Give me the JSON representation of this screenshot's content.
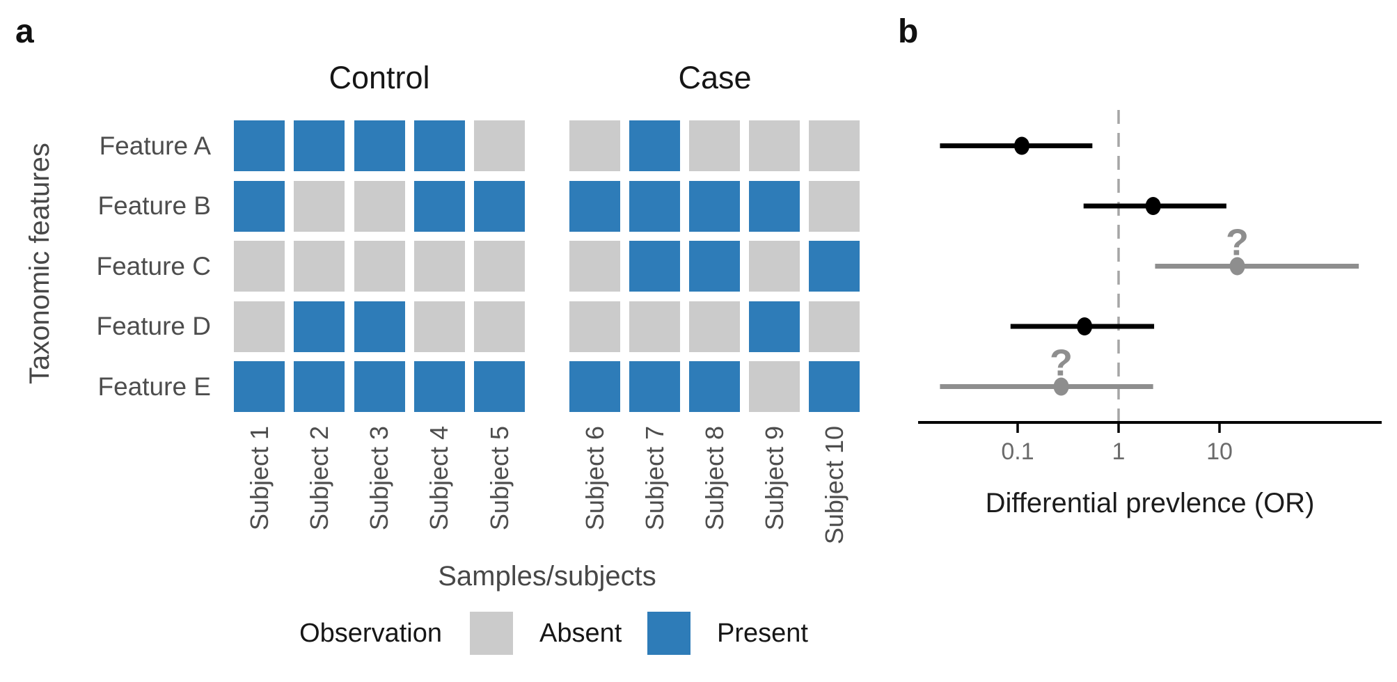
{
  "figure": {
    "panel_a_letter": "a",
    "panel_b_letter": "b"
  },
  "chart_data": [
    {
      "type": "heatmap",
      "facets": [
        "Control",
        "Case"
      ],
      "facet_columns": [
        [
          "Subject 1",
          "Subject 2",
          "Subject 3",
          "Subject 4",
          "Subject 5"
        ],
        [
          "Subject 6",
          "Subject 7",
          "Subject 8",
          "Subject 9",
          "Subject 10"
        ]
      ],
      "rows": [
        "Feature A",
        "Feature B",
        "Feature C",
        "Feature D",
        "Feature E"
      ],
      "columns": [
        "Subject 1",
        "Subject 2",
        "Subject 3",
        "Subject 4",
        "Subject 5",
        "Subject 6",
        "Subject 7",
        "Subject 8",
        "Subject 9",
        "Subject 10"
      ],
      "values": [
        [
          1,
          1,
          1,
          1,
          0,
          0,
          1,
          0,
          0,
          0
        ],
        [
          1,
          0,
          0,
          1,
          1,
          1,
          1,
          1,
          1,
          0
        ],
        [
          0,
          0,
          0,
          0,
          0,
          0,
          1,
          1,
          0,
          1
        ],
        [
          0,
          1,
          1,
          0,
          0,
          0,
          0,
          0,
          1,
          0
        ],
        [
          1,
          1,
          1,
          1,
          1,
          1,
          1,
          1,
          0,
          1
        ]
      ],
      "value_encoding": {
        "0": "Absent",
        "1": "Present"
      },
      "xlabel": "Samples/subjects",
      "ylabel": "Taxonomic features",
      "legend": {
        "title": "Observation",
        "position": "bottom",
        "items": [
          {
            "label": "Absent",
            "color": "#cbcbcb"
          },
          {
            "label": "Present",
            "color": "#2e7cb8"
          }
        ]
      }
    },
    {
      "type": "scatter",
      "subtype": "forest-plot",
      "x_scale": "log10",
      "xlabel": "Differential prevlence (OR)",
      "x_ticks": [
        0.1,
        1,
        10
      ],
      "x_tick_labels": [
        "0.1",
        "1",
        "10"
      ],
      "x_range": [
        0.01,
        350
      ],
      "reference_line": 1,
      "grid": false,
      "uncertainty_marker": "?",
      "series": [
        {
          "feature": "Feature A",
          "or": 0.11,
          "ci_low": 0.017,
          "ci_high": 0.55,
          "color": "#000000",
          "uncertain": false
        },
        {
          "feature": "Feature B",
          "or": 2.2,
          "ci_low": 0.45,
          "ci_high": 11.7,
          "color": "#000000",
          "uncertain": false
        },
        {
          "feature": "Feature C",
          "or": 15,
          "ci_low": 2.3,
          "ci_high": 240,
          "color": "#8e8e8e",
          "uncertain": true
        },
        {
          "feature": "Feature D",
          "or": 0.46,
          "ci_low": 0.085,
          "ci_high": 2.25,
          "color": "#000000",
          "uncertain": false
        },
        {
          "feature": "Feature E",
          "or": 0.27,
          "ci_low": 0.017,
          "ci_high": 2.2,
          "color": "#8e8e8e",
          "uncertain": true
        }
      ],
      "colors": {
        "reference_line": "#a6a6a6",
        "axis": "#000000",
        "tick_text": "#6b6b6b",
        "title_text": "#1c1c1c"
      }
    }
  ]
}
